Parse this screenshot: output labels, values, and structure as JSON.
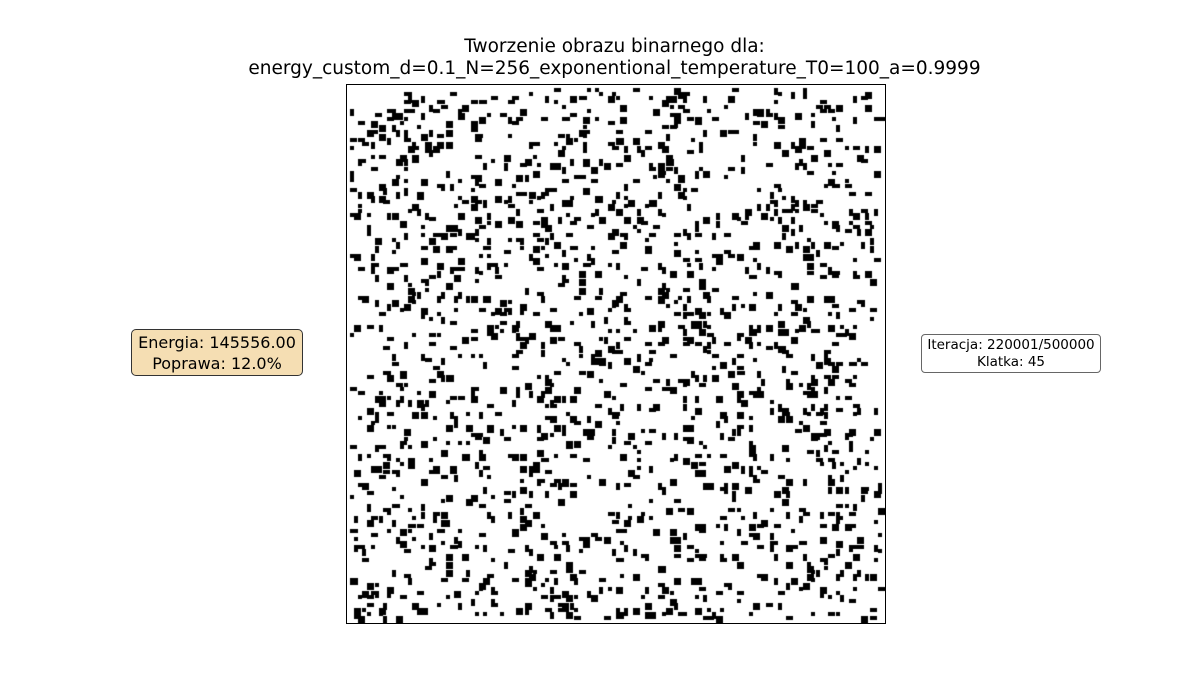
{
  "title": {
    "line1": "Tworzenie obrazu binarnego dla:",
    "line2": "energy_custom_d=0.1_N=256_exponentional_temperature_T0=100_a=0.9999"
  },
  "energy_box": {
    "energy": "Energia: 145556.00",
    "improvement": "Poprawa: 12.0%",
    "background": "#f5deb3"
  },
  "iteration_box": {
    "iteration": "Iteracja: 220001/500000",
    "frame": "Klatka: 45"
  },
  "image": {
    "grid_size": 256,
    "density": 0.1,
    "pixel_color": "#000000",
    "background_color": "#ffffff"
  }
}
